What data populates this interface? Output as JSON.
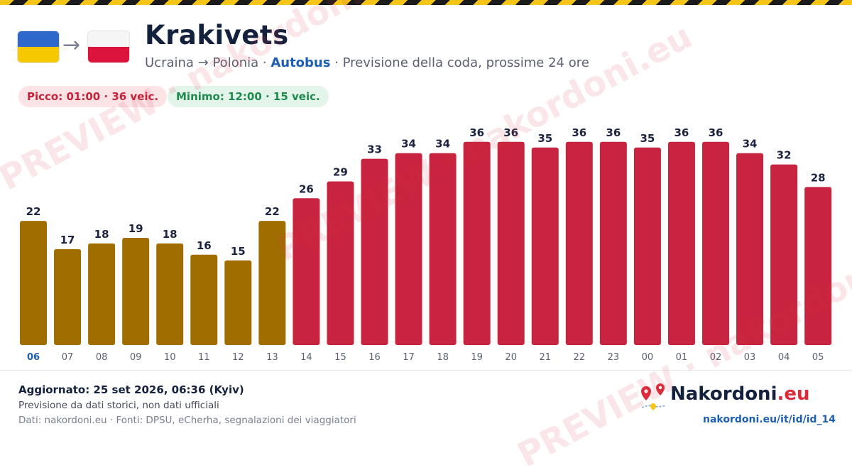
{
  "header": {
    "title": "Krakivets",
    "subtitle_route": "Ucraina → Polonia",
    "subtitle_sep1": " · ",
    "subtitle_mode": "Autobus",
    "subtitle_rest": " · Previsione della coda, prossime 24 ore",
    "arrow": "→"
  },
  "badges": {
    "peak": "Picco: 01:00 · 36 veic.",
    "min": "Minimo: 12:00 · 15 veic."
  },
  "footer": {
    "updated": "Aggiornato: 25 set 2026, 06:36 (Kyiv)",
    "note": "Previsione da dati storici, non dati ufficiali",
    "sources": "Dati: nakordoni.eu · Fonti: DPSU, eCherha, segnalazioni dei viaggiatori",
    "brand_name": "Nakordoni",
    "brand_tld": ".eu",
    "url": "nakordoni.eu/it/id/id_14"
  },
  "watermark": "PREVIEW · nakordoni.eu",
  "colors": {
    "bar_low": "#a06d00",
    "bar_high": "#c8233f",
    "current_hour_label": "#1d5fb5",
    "hour_label": "#5b6173",
    "value_label": "#1b2340"
  },
  "chart_data": {
    "type": "bar",
    "categories": [
      "06",
      "07",
      "08",
      "09",
      "10",
      "11",
      "12",
      "13",
      "14",
      "15",
      "16",
      "17",
      "18",
      "19",
      "20",
      "21",
      "22",
      "23",
      "00",
      "01",
      "02",
      "03",
      "04",
      "05"
    ],
    "values": [
      22,
      17,
      18,
      19,
      18,
      16,
      15,
      22,
      26,
      29,
      33,
      34,
      34,
      36,
      36,
      35,
      36,
      36,
      35,
      36,
      36,
      34,
      32,
      28
    ],
    "highlight_category": "06",
    "low_threshold_index": 7,
    "ylim": [
      0,
      40
    ],
    "grid": false,
    "legend": "none"
  }
}
